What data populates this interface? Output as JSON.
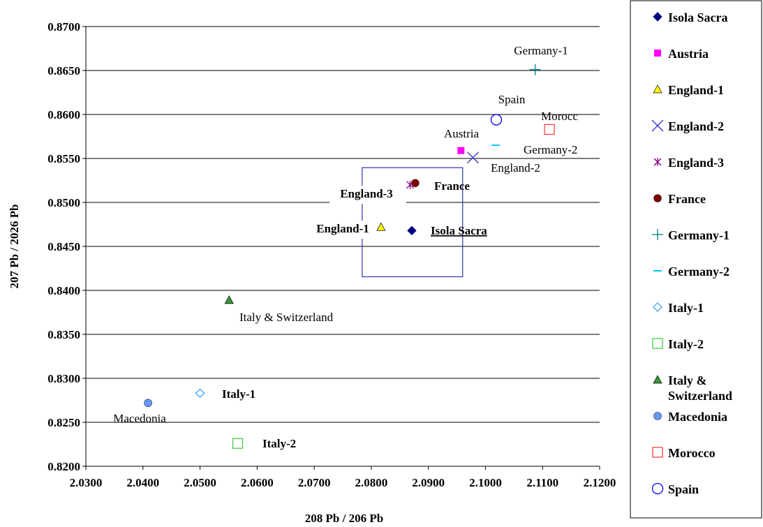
{
  "chart_data": {
    "type": "scatter",
    "xlabel": "208 Pb / 206 Pb",
    "ylabel": "207 Pb / 2026 Pb",
    "xlim": [
      2.03,
      2.12
    ],
    "ylim": [
      0.82,
      0.87
    ],
    "x_ticks": [
      "2.0300",
      "2.0400",
      "2.0500",
      "2.0600",
      "2.0700",
      "2.0800",
      "2.0900",
      "2.1000",
      "2.1100",
      "2.1200"
    ],
    "y_ticks": [
      "0.8200",
      "0.8250",
      "0.8300",
      "0.8350",
      "0.8400",
      "0.8450",
      "0.8500",
      "0.8550",
      "0.8600",
      "0.8650",
      "0.8700"
    ],
    "grid": "horizontal",
    "legend_position": "right",
    "series": [
      {
        "name": "Isola Sacra",
        "marker": "diamond",
        "color": "#000080",
        "x": 2.0871,
        "y": 0.8468
      },
      {
        "name": "Austria",
        "marker": "square",
        "color": "#ff00ff",
        "x": 2.0957,
        "y": 0.8559
      },
      {
        "name": "England-1",
        "marker": "triangle",
        "color": "#ffff00",
        "x": 2.0817,
        "y": 0.8472
      },
      {
        "name": "England-2",
        "marker": "x",
        "color": "#3333cc",
        "x": 2.0978,
        "y": 0.8551
      },
      {
        "name": "England-3",
        "marker": "star",
        "color": "#800080",
        "x": 2.0868,
        "y": 0.852
      },
      {
        "name": "France",
        "marker": "circle",
        "color": "#800000",
        "x": 2.0877,
        "y": 0.8522
      },
      {
        "name": "Germany-1",
        "marker": "plus",
        "color": "#008080",
        "x": 2.1087,
        "y": 0.8651
      },
      {
        "name": "Germany-2",
        "marker": "dash",
        "color": "#00ccff",
        "x": 2.1018,
        "y": 0.8565
      },
      {
        "name": "Italy-1",
        "marker": "open-diamond",
        "color": "#3399ff",
        "x": 2.05,
        "y": 0.8283
      },
      {
        "name": "Italy-2",
        "marker": "open-square",
        "color": "#33cc33",
        "x": 2.0566,
        "y": 0.8226
      },
      {
        "name": "Italy & Switzerland",
        "marker": "triangle",
        "color": "#339933",
        "x": 2.0551,
        "y": 0.8389
      },
      {
        "name": "Macedonia",
        "marker": "circle",
        "color": "#6699ff",
        "x": 2.0409,
        "y": 0.8272
      },
      {
        "name": "Morocco",
        "marker": "open-square",
        "color": "#ff3333",
        "x": 2.1112,
        "y": 0.8583
      },
      {
        "name": "Spain",
        "marker": "open-circle",
        "color": "#0000ff",
        "x": 2.1019,
        "y": 0.8594
      }
    ],
    "annotations": [
      {
        "text": "Germany-1",
        "bold": false,
        "underline": false
      },
      {
        "text": "Spain",
        "bold": false,
        "underline": false
      },
      {
        "text": "Morocc",
        "bold": false,
        "underline": false
      },
      {
        "text": "Austria",
        "bold": false,
        "underline": false
      },
      {
        "text": "Germany-2",
        "bold": false,
        "underline": false
      },
      {
        "text": "England-2",
        "bold": false,
        "underline": false
      },
      {
        "text": "England-3",
        "bold": true,
        "underline": false
      },
      {
        "text": "France",
        "bold": true,
        "underline": false
      },
      {
        "text": "England-1",
        "bold": true,
        "underline": false
      },
      {
        "text": "Isola Sacra",
        "bold": true,
        "underline": true
      },
      {
        "text": "Italy & Switzerland",
        "bold": false,
        "underline": false
      },
      {
        "text": "Italy-1",
        "bold": true,
        "underline": false
      },
      {
        "text": "Macedonia",
        "bold": false,
        "underline": false
      },
      {
        "text": "Italy-2",
        "bold": true,
        "underline": false
      }
    ],
    "highlight_box": {
      "x": [
        2.0784,
        2.096
      ],
      "y": [
        0.84155,
        0.85395
      ]
    },
    "legend_entries": [
      "Isola Sacra",
      "Austria",
      "England-1",
      "England-2",
      "England-3",
      "France",
      "Germany-1",
      "Germany-2",
      "Italy-1",
      "Italy-2",
      "Italy &\nSwitzerland",
      "Macedonia",
      "Morocco",
      "Spain"
    ]
  }
}
